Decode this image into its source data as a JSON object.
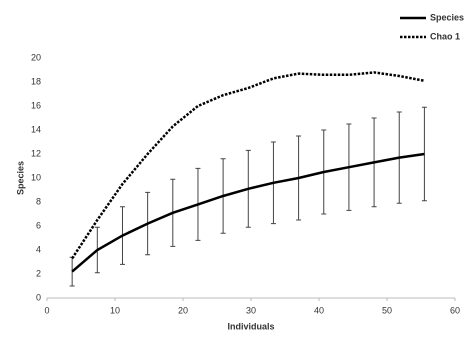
{
  "chart_data": {
    "type": "line",
    "x_label": "Individuals",
    "y_label": "Species",
    "x": [
      3.7,
      7.4,
      11.1,
      14.8,
      18.5,
      22.2,
      25.9,
      29.6,
      33.3,
      37.0,
      40.7,
      44.4,
      48.1,
      51.8,
      55.5
    ],
    "series": [
      {
        "name": "Species",
        "color": "#000000",
        "dash": "solid",
        "values": [
          2.2,
          4.0,
          5.2,
          6.2,
          7.1,
          7.8,
          8.5,
          9.1,
          9.6,
          10.0,
          10.5,
          10.9,
          11.3,
          11.7,
          12.0
        ],
        "errors": [
          1.2,
          1.9,
          2.4,
          2.6,
          2.8,
          3.0,
          3.1,
          3.2,
          3.4,
          3.5,
          3.5,
          3.6,
          3.7,
          3.8,
          3.9
        ]
      },
      {
        "name": "Chao 1",
        "color": "#000000",
        "dash": "dotted",
        "values": [
          3.3,
          6.5,
          9.5,
          12.0,
          14.3,
          16.0,
          16.9,
          17.5,
          18.3,
          18.7,
          18.6,
          18.6,
          18.8,
          18.5,
          18.1
        ]
      }
    ],
    "xlim": [
      0,
      60
    ],
    "xticks": [
      0,
      10,
      20,
      30,
      40,
      50,
      60
    ],
    "ylim": [
      0,
      20
    ],
    "yticks": [
      0,
      2,
      4,
      6,
      8,
      10,
      12,
      14,
      16,
      18,
      20
    ],
    "legend": "top-right",
    "grid": false
  }
}
